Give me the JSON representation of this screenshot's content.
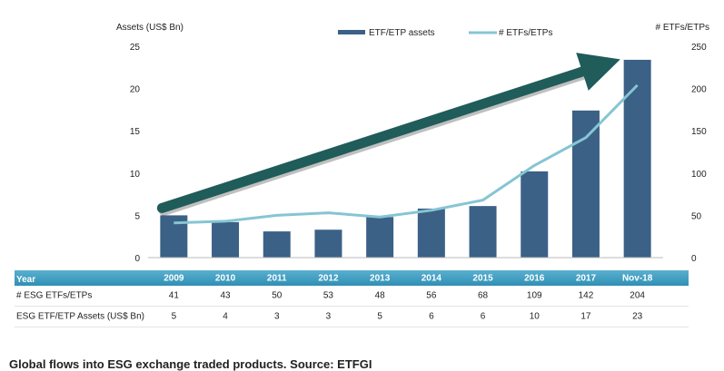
{
  "chart_data": {
    "type": "bar+line",
    "categories": [
      "2009",
      "2010",
      "2011",
      "2012",
      "2013",
      "2014",
      "2015",
      "2016",
      "2017",
      "Nov-18"
    ],
    "series": [
      {
        "name": "ETF/ETP assets",
        "type": "bar",
        "axis": "left",
        "color": "#3b6186",
        "values": [
          5.0,
          4.2,
          3.1,
          3.3,
          4.8,
          5.8,
          6.1,
          10.2,
          17.4,
          23.4
        ]
      },
      {
        "name": "# ETFs/ETPs",
        "type": "line",
        "axis": "right",
        "color": "#86c5d3",
        "values": [
          41,
          43,
          50,
          53,
          48,
          56,
          68,
          109,
          142,
          204
        ]
      }
    ],
    "ylabel_left": "Assets (US$ Bn)",
    "ylabel_right": "# ETFs/ETPs",
    "ylim_left": [
      0,
      25
    ],
    "ylim_right": [
      0,
      250
    ],
    "yticks_left": [
      "0",
      "5",
      "10",
      "15",
      "20",
      "25"
    ],
    "yticks_right": [
      "0",
      "50",
      "100",
      "150",
      "200",
      "250"
    ],
    "legend_position": "top-center",
    "grid": false,
    "annotation": {
      "type": "trend-arrow",
      "color": "#1f5c5a"
    },
    "table": {
      "header_label": "Year",
      "rows": [
        {
          "label": "# ESG ETFs/ETPs",
          "values": [
            "41",
            "43",
            "50",
            "53",
            "48",
            "56",
            "68",
            "109",
            "142",
            "204"
          ]
        },
        {
          "label": "ESG ETF/ETP Assets (US$ Bn)",
          "values": [
            "5",
            "4",
            "3",
            "3",
            "5",
            "6",
            "6",
            "10",
            "17",
            "23"
          ]
        }
      ]
    }
  },
  "caption": "Global flows into ESG exchange traded products. Source: ETFGI"
}
